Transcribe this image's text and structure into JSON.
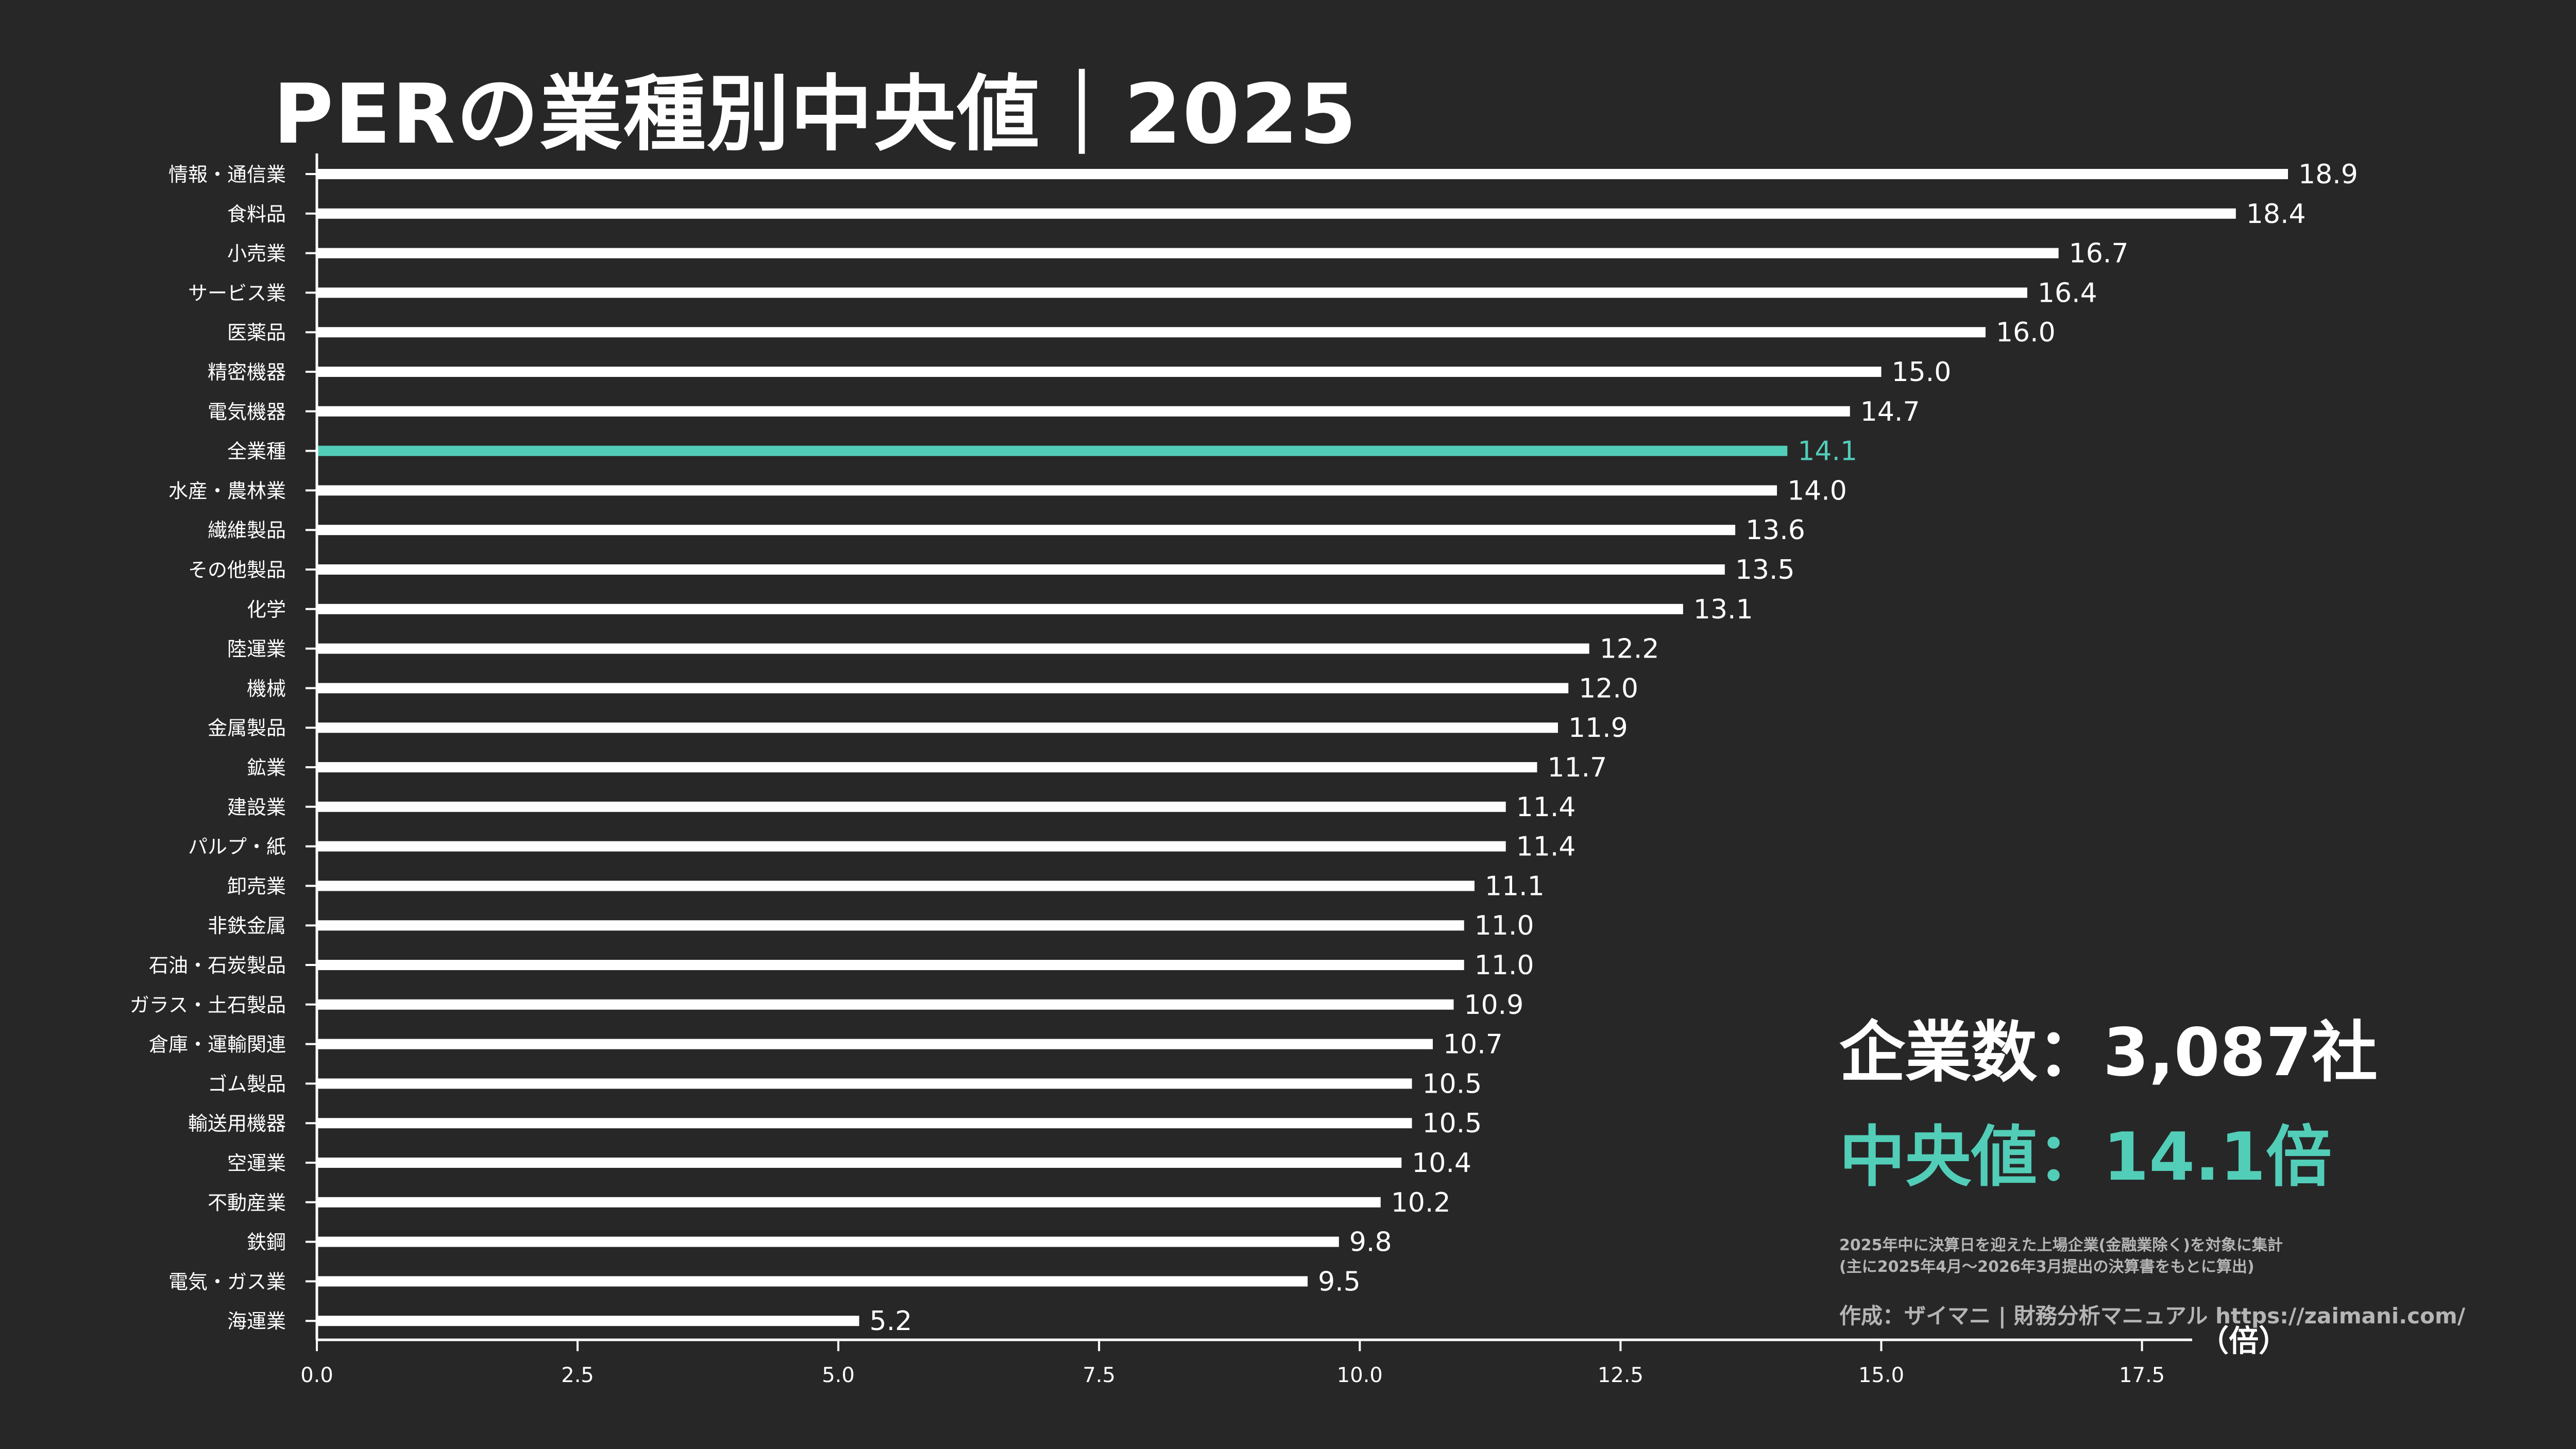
{
  "title": "PERの業種別中央値｜2025",
  "colors": {
    "background": "#272727",
    "bar": "#ffffff",
    "highlight": "#52cdb8",
    "text": "#ffffff",
    "muted": "#b5b5b5"
  },
  "stats": {
    "companies": "企業数：3,087社",
    "median": "中央値：14.1倍",
    "note_line1": "2025年中に決算日を迎えた上場企業(金融業除く)を対象に集計",
    "note_line2": "(主に2025年4月〜2026年3月提出の決算書をもとに算出)",
    "credit": "作成：ザイマニ | 財務分析マニュアル https://zaimani.com/"
  },
  "chart_data": {
    "type": "bar",
    "orientation": "horizontal",
    "title": "PERの業種別中央値｜2025",
    "xlabel": "（倍）",
    "ylabel": "",
    "xlim": [
      0,
      18.9
    ],
    "xticks": [
      0,
      2.5,
      5,
      7.5,
      10,
      12.5,
      15,
      17.5
    ],
    "xtick_labels": [
      "0.0",
      "2.5",
      "5.0",
      "7.5",
      "10.0",
      "12.5",
      "15.0",
      "17.5"
    ],
    "grid": false,
    "highlight": "全業種",
    "categories": [
      "情報・通信業",
      "食料品",
      "小売業",
      "サービス業",
      "医薬品",
      "精密機器",
      "電気機器",
      "全業種",
      "水産・農林業",
      "繊維製品",
      "その他製品",
      "化学",
      "陸運業",
      "機械",
      "金属製品",
      "鉱業",
      "建設業",
      "パルプ・紙",
      "卸売業",
      "非鉄金属",
      "石油・石炭製品",
      "ガラス・土石製品",
      "倉庫・運輸関連",
      "ゴム製品",
      "輸送用機器",
      "空運業",
      "不動産業",
      "鉄鋼",
      "電気・ガス業",
      "海運業"
    ],
    "values": [
      18.9,
      18.4,
      16.7,
      16.4,
      16.0,
      15.0,
      14.7,
      14.1,
      14.0,
      13.6,
      13.5,
      13.1,
      12.2,
      12.0,
      11.9,
      11.7,
      11.4,
      11.4,
      11.1,
      11.0,
      11.0,
      10.9,
      10.7,
      10.5,
      10.5,
      10.4,
      10.2,
      9.8,
      9.5,
      5.2
    ],
    "value_labels": [
      "18.9",
      "18.4",
      "16.7",
      "16.4",
      "16.0",
      "15.0",
      "14.7",
      "14.1",
      "14.0",
      "13.6",
      "13.5",
      "13.1",
      "12.2",
      "12.0",
      "11.9",
      "11.7",
      "11.4",
      "11.4",
      "11.1",
      "11.0",
      "11.0",
      "10.9",
      "10.7",
      "10.5",
      "10.5",
      "10.4",
      "10.2",
      "9.8",
      "9.5",
      "5.2"
    ]
  }
}
